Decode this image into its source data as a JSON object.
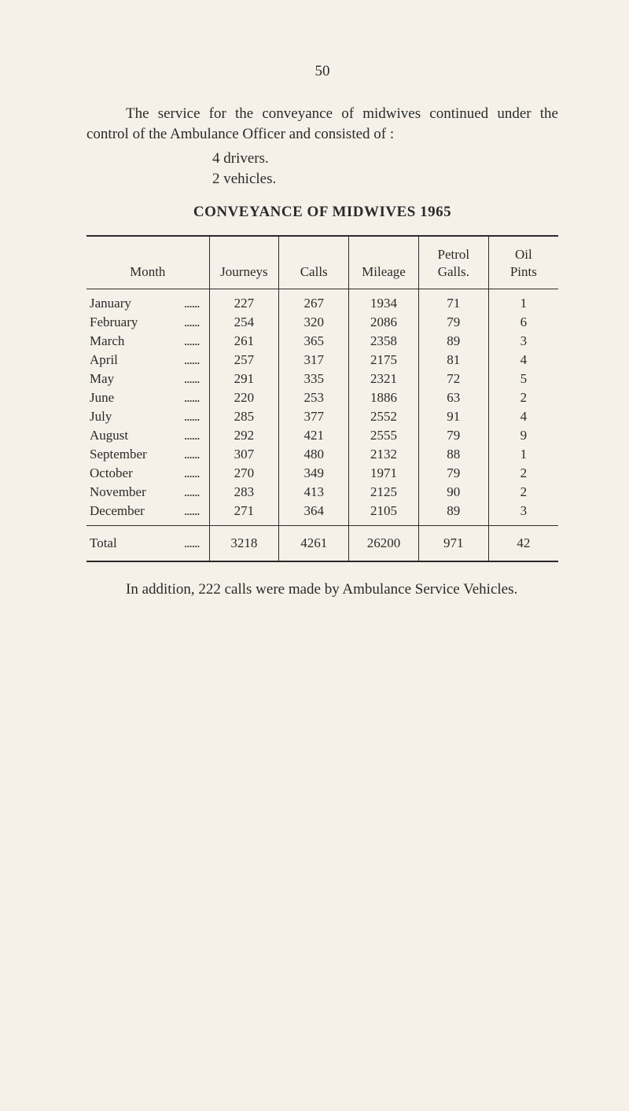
{
  "page_number": "50",
  "intro_paragraph": "The service for the conveyance of midwives continued under the control of the Ambulance Officer and consisted of :",
  "list_item_1": "4 drivers.",
  "list_item_2": "2 vehicles.",
  "table_title": "CONVEYANCE OF MIDWIVES 1965",
  "table": {
    "columns": [
      "Month",
      "Journeys",
      "Calls",
      "Mileage",
      "Petrol Galls.",
      "Oil Pints"
    ],
    "column_headers_multiline": {
      "petrol": [
        "Petrol",
        "Galls."
      ],
      "oil": [
        "Oil",
        "Pints"
      ]
    },
    "rows": [
      {
        "month": "January",
        "journeys": "227",
        "calls": "267",
        "mileage": "1934",
        "petrol": "71",
        "oil": "1"
      },
      {
        "month": "February",
        "journeys": "254",
        "calls": "320",
        "mileage": "2086",
        "petrol": "79",
        "oil": "6"
      },
      {
        "month": "March",
        "journeys": "261",
        "calls": "365",
        "mileage": "2358",
        "petrol": "89",
        "oil": "3"
      },
      {
        "month": "April",
        "journeys": "257",
        "calls": "317",
        "mileage": "2175",
        "petrol": "81",
        "oil": "4"
      },
      {
        "month": "May",
        "journeys": "291",
        "calls": "335",
        "mileage": "2321",
        "petrol": "72",
        "oil": "5"
      },
      {
        "month": "June",
        "journeys": "220",
        "calls": "253",
        "mileage": "1886",
        "petrol": "63",
        "oil": "2"
      },
      {
        "month": "July",
        "journeys": "285",
        "calls": "377",
        "mileage": "2552",
        "petrol": "91",
        "oil": "4"
      },
      {
        "month": "August",
        "journeys": "292",
        "calls": "421",
        "mileage": "2555",
        "petrol": "79",
        "oil": "9"
      },
      {
        "month": "September",
        "journeys": "307",
        "calls": "480",
        "mileage": "2132",
        "petrol": "88",
        "oil": "1"
      },
      {
        "month": "October",
        "journeys": "270",
        "calls": "349",
        "mileage": "1971",
        "petrol": "79",
        "oil": "2"
      },
      {
        "month": "November",
        "journeys": "283",
        "calls": "413",
        "mileage": "2125",
        "petrol": "90",
        "oil": "2"
      },
      {
        "month": "December",
        "journeys": "271",
        "calls": "364",
        "mileage": "2105",
        "petrol": "89",
        "oil": "3"
      }
    ],
    "total_label": "Total",
    "totals": {
      "journeys": "3218",
      "calls": "4261",
      "mileage": "26200",
      "petrol": "971",
      "oil": "42"
    }
  },
  "footer_text": "In addition, 222 calls were made by Ambulance Service Vehicles."
}
